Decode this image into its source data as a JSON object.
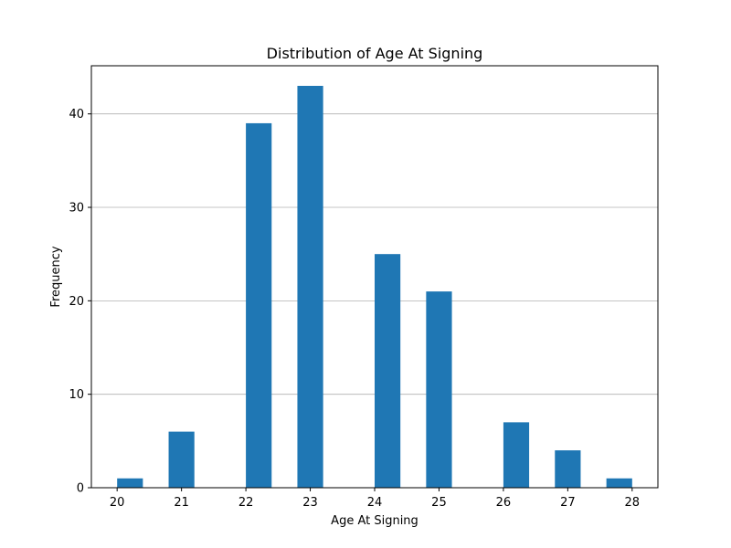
{
  "chart_data": {
    "type": "bar",
    "title": "Distribution of Age At Signing",
    "xlabel": "Age At Signing",
    "ylabel": "Frequency",
    "x_ticks": [
      20,
      21,
      22,
      23,
      24,
      25,
      26,
      27,
      28
    ],
    "y_ticks": [
      0,
      10,
      20,
      30,
      40
    ],
    "xlim": [
      19.6,
      28.4
    ],
    "ylim": [
      0,
      45.15
    ],
    "bin_width": 0.4,
    "bars": [
      {
        "x": 20.0,
        "value": 1
      },
      {
        "x": 20.8,
        "value": 6
      },
      {
        "x": 22.0,
        "value": 39
      },
      {
        "x": 22.8,
        "value": 43
      },
      {
        "x": 24.0,
        "value": 25
      },
      {
        "x": 24.8,
        "value": 21
      },
      {
        "x": 26.0,
        "value": 7
      },
      {
        "x": 26.8,
        "value": 4
      },
      {
        "x": 27.6,
        "value": 1
      }
    ],
    "bar_color": "#1f77b4",
    "grid": "y-major",
    "grid_color": "#b0b0b0"
  }
}
